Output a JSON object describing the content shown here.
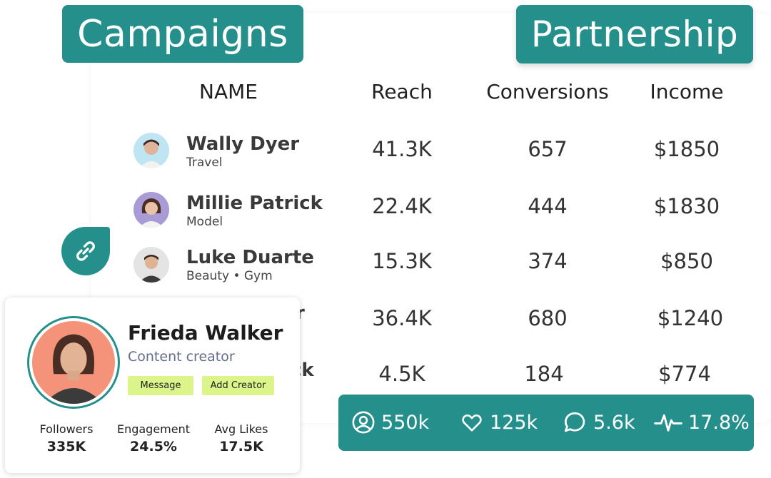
{
  "labels": {
    "campaigns": "Campaigns",
    "partnership": "Partnership"
  },
  "table": {
    "headers": [
      "NAME",
      "Reach",
      "Conversions",
      "Income"
    ],
    "rows": [
      {
        "name": "Wally Dyer",
        "category": "Travel",
        "reach": "41.3K",
        "conversions": "657",
        "income": "$1850",
        "avatar_bg": "#bfe4f2"
      },
      {
        "name": "Millie Patrick",
        "category": "Model",
        "reach": "22.4K",
        "conversions": "444",
        "income": "$1830",
        "avatar_bg": "#a89bd6"
      },
      {
        "name": "Luke Duarte",
        "category": "Beauty • Gym",
        "reach": "15.3K",
        "conversions": "374",
        "income": "$850",
        "avatar_bg": "#e4e4e4"
      },
      {
        "name_partial": "r",
        "reach": "36.4K",
        "conversions": "680",
        "income": "$1240"
      },
      {
        "name_partial": "ck",
        "reach": "4.5K",
        "conversions": "184",
        "income": "$774"
      }
    ]
  },
  "profile": {
    "name": "Frieda Walker",
    "role": "Content creator",
    "message_label": "Message",
    "add_label": "Add Creator",
    "stats": [
      {
        "label": "Followers",
        "value": "335K"
      },
      {
        "label": "Engagement",
        "value": "24.5%"
      },
      {
        "label": "Avg Likes",
        "value": "17.5K"
      }
    ]
  },
  "summary": [
    {
      "icon": "user-circle-icon",
      "value": "550k"
    },
    {
      "icon": "heart-icon",
      "value": "125k"
    },
    {
      "icon": "chat-bubble-icon",
      "value": "5.6k"
    },
    {
      "icon": "activity-pulse-icon",
      "value": "17.8%"
    }
  ],
  "colors": {
    "teal": "#258f8c",
    "chip": "#dcf58a",
    "profile_bg": "#f4937a"
  }
}
